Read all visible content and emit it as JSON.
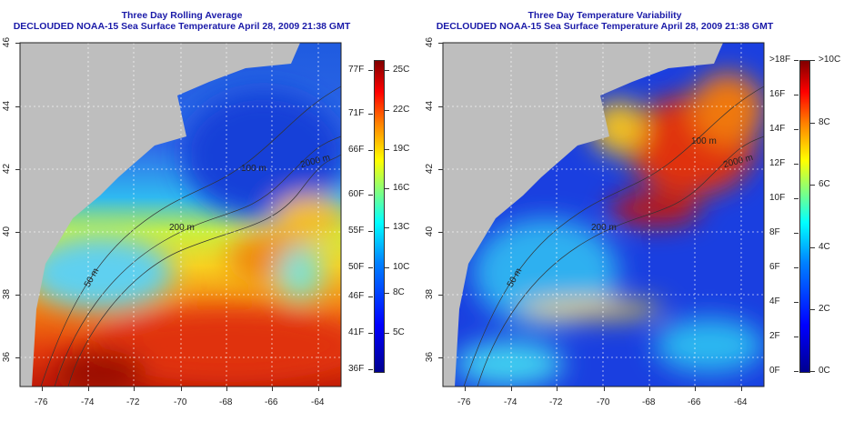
{
  "left_panel": {
    "title": "Three Day Rolling Average",
    "subtitle": "DECLOUDED NOAA-15 Sea Surface Temperature April 28, 2009 21:38 GMT",
    "colorbar": {
      "f_labels": [
        "77F",
        "71F",
        "66F",
        "60F",
        "55F",
        "50F",
        "46F",
        "41F",
        "36F"
      ],
      "c_labels": [
        "25C",
        "22C",
        "19C",
        "16C",
        "13C",
        "10C",
        "8C",
        "5C"
      ]
    },
    "contour_labels": [
      "200 m",
      "2000 m",
      "50 m",
      "100 m"
    ]
  },
  "right_panel": {
    "title": "Three Day Temperature Variability",
    "subtitle": "DECLOUDED NOAA-15 Sea Surface Temperature April 28, 2009 21:38 GMT",
    "colorbar": {
      "f_labels": [
        ">18F",
        "16F",
        "14F",
        "12F",
        "10F",
        "8F",
        "6F",
        "4F",
        "2F",
        "0F"
      ],
      "c_labels": [
        ">10C",
        "8C",
        "6C",
        "4C",
        "2C",
        "0C"
      ]
    },
    "contour_labels": [
      "200 m",
      "2000 m",
      "50 m",
      "100 m"
    ]
  },
  "axes": {
    "lon_labels": [
      "-76",
      "-74",
      "-72",
      "-70",
      "-68",
      "-66",
      "-64"
    ],
    "lat_labels": [
      "46",
      "44",
      "42",
      "40",
      "38",
      "36"
    ]
  },
  "colors": {
    "title": "#1a1aa8",
    "land": "#bebebe"
  }
}
